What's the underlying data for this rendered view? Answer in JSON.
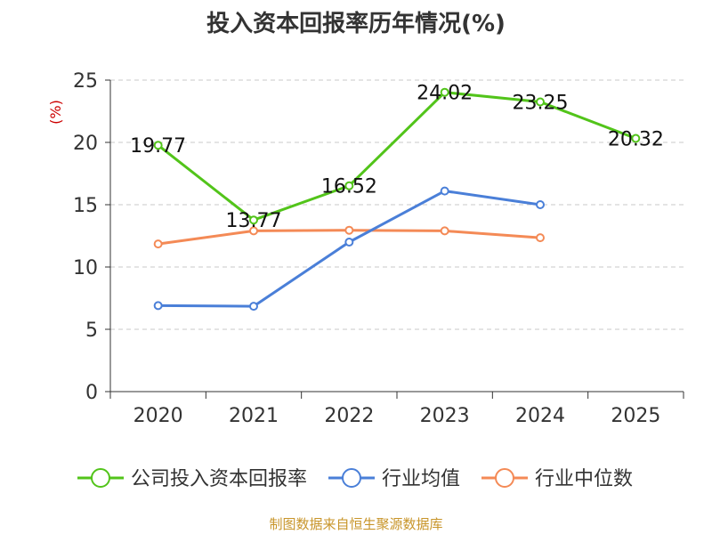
{
  "chart_data": {
    "type": "line",
    "title": "投入资本回报率历年情况(%)",
    "ylabel": "(%)",
    "xlabel": "",
    "categories": [
      "2020",
      "2021",
      "2022",
      "2023",
      "2024",
      "2025"
    ],
    "ylim": [
      0,
      25
    ],
    "yticks": [
      0,
      5,
      10,
      15,
      20,
      25
    ],
    "grid": true,
    "legend_position": "bottom",
    "series": [
      {
        "name": "公司投入资本回报率",
        "color": "#52c41a",
        "values": [
          19.77,
          13.77,
          16.52,
          24.02,
          23.25,
          20.32
        ],
        "labels": [
          "19.77",
          "13.77",
          "16.52",
          "24.02",
          "23.25",
          "20.32"
        ]
      },
      {
        "name": "行业均值",
        "color": "#4a7fd8",
        "values": [
          6.9,
          6.85,
          12.0,
          16.1,
          15.0,
          null
        ]
      },
      {
        "name": "行业中位数",
        "color": "#f48a56",
        "values": [
          11.85,
          12.9,
          12.95,
          12.9,
          12.35,
          null
        ]
      }
    ]
  },
  "ylabel_color": "#cc0000",
  "source_note": "制图数据来自恒生聚源数据库"
}
